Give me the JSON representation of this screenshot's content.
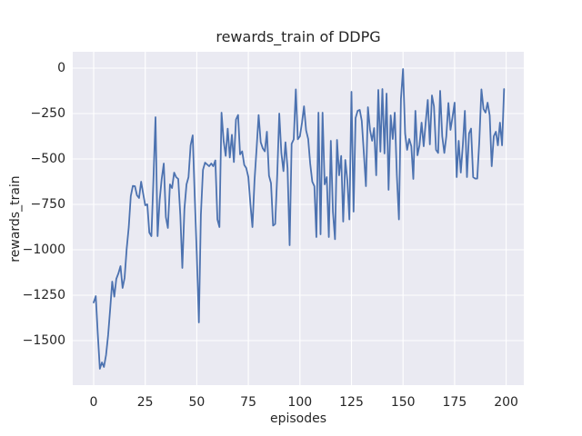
{
  "figure": {
    "title": "rewards_train of DDPG",
    "xlabel": "episodes",
    "ylabel": "rewards_train",
    "background_color": "#ffffff",
    "axes_background_color": "#eaeaf2",
    "grid_color": "#ffffff",
    "line_color": "#4c72b0",
    "text_color": "#262626"
  },
  "chart_data": {
    "type": "line",
    "title": "rewards_train of DDPG",
    "xlabel": "episodes",
    "ylabel": "rewards_train",
    "grid": true,
    "legend": false,
    "xlim": [
      -10,
      209
    ],
    "ylim": [
      -1737,
      78
    ],
    "x_ticks": [
      0,
      25,
      50,
      75,
      100,
      125,
      150,
      175,
      200
    ],
    "x_tick_labels": [
      "0",
      "25",
      "50",
      "75",
      "100",
      "125",
      "150",
      "175",
      "200"
    ],
    "y_ticks": [
      0,
      -250,
      -500,
      -750,
      -1000,
      -1250,
      -1500
    ],
    "y_tick_labels": [
      "0",
      "−250",
      "−500",
      "−750",
      "−1000",
      "−1250",
      "−1500"
    ],
    "series": [
      {
        "name": "rewards_train",
        "color": "#4c72b0",
        "x_description": "episode index, 0 to 199, step 1",
        "x0": 0,
        "dx": 1,
        "y": [
          -1290,
          -1255,
          -1460,
          -1655,
          -1620,
          -1645,
          -1580,
          -1470,
          -1330,
          -1175,
          -1258,
          -1160,
          -1130,
          -1090,
          -1210,
          -1155,
          -995,
          -875,
          -705,
          -648,
          -650,
          -700,
          -715,
          -625,
          -690,
          -755,
          -750,
          -905,
          -925,
          -600,
          -270,
          -925,
          -725,
          -610,
          -525,
          -820,
          -880,
          -640,
          -660,
          -575,
          -600,
          -610,
          -810,
          -1100,
          -775,
          -640,
          -600,
          -425,
          -370,
          -700,
          -1025,
          -1400,
          -808,
          -560,
          -520,
          -530,
          -540,
          -525,
          -540,
          -508,
          -833,
          -875,
          -245,
          -400,
          -483,
          -333,
          -492,
          -367,
          -517,
          -283,
          -258,
          -475,
          -458,
          -533,
          -550,
          -600,
          -750,
          -875,
          -617,
          -440,
          -258,
          -408,
          -442,
          -458,
          -350,
          -592,
          -633,
          -867,
          -858,
          -583,
          -250,
          -467,
          -567,
          -408,
          -550,
          -975,
          -417,
          -392,
          -117,
          -392,
          -375,
          -300,
          -210,
          -342,
          -390,
          -525,
          -625,
          -650,
          -930,
          -245,
          -915,
          -245,
          -640,
          -600,
          -930,
          -400,
          -790,
          -942,
          -395,
          -590,
          -483,
          -845,
          -505,
          -620,
          -833,
          -130,
          -790,
          -275,
          -235,
          -230,
          -290,
          -467,
          -650,
          -215,
          -340,
          -400,
          -330,
          -590,
          -120,
          -460,
          -115,
          -470,
          -140,
          -670,
          -260,
          -390,
          -245,
          -590,
          -833,
          -170,
          -5,
          -360,
          -450,
          -390,
          -430,
          -610,
          -235,
          -480,
          -425,
          -300,
          -430,
          -300,
          -175,
          -420,
          -150,
          -210,
          -450,
          -467,
          -125,
          -375,
          -467,
          -375,
          -192,
          -340,
          -270,
          -190,
          -600,
          -400,
          -575,
          -420,
          -235,
          -600,
          -360,
          -333,
          -600,
          -608,
          -608,
          -400,
          -117,
          -225,
          -245,
          -190,
          -260,
          -540,
          -375,
          -350,
          -425,
          -300,
          -425,
          -115
        ]
      }
    ]
  }
}
